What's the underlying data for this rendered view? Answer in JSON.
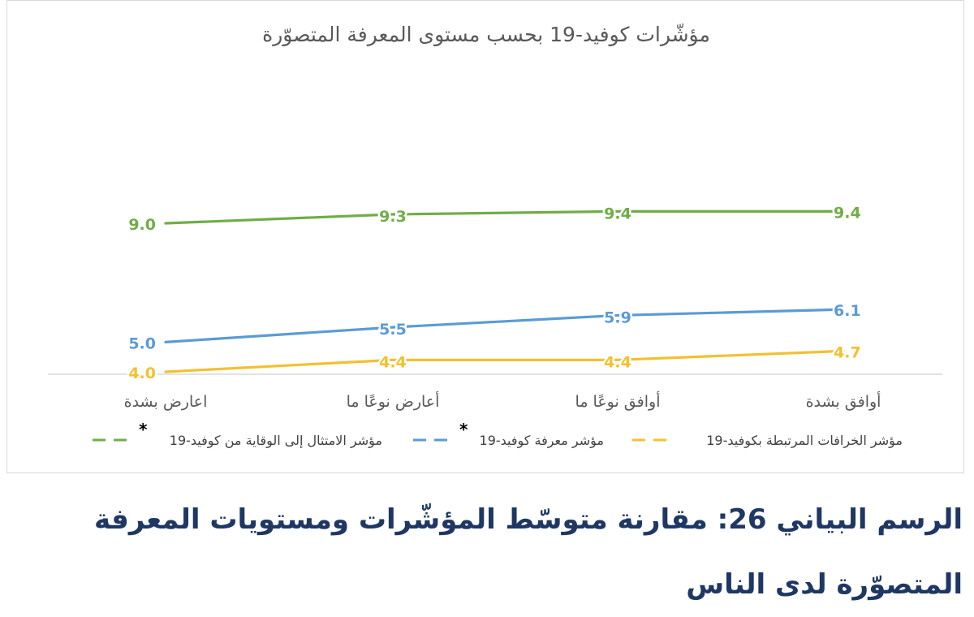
{
  "chart_data": {
    "type": "line",
    "title": "مؤشّرات كوفيد-19 بحسب مستوى المعرفة المتصوّرة",
    "categories": [
      "اعارض بشدة",
      "أعارض نوعًا ما",
      "أوافق نوعًا ما",
      "أوافق بشدة"
    ],
    "ylim": [
      4.0,
      9.6
    ],
    "grid": false,
    "legend_position": "bottom",
    "series": [
      {
        "name": "مؤشر الامتثال إلى الوقاية من كوفيد-19",
        "marker": "*",
        "color": "#70ad47",
        "dashed_legend": true,
        "values": [
          9.0,
          9.3,
          9.4,
          9.4
        ],
        "labels": [
          "9.0",
          "9.3",
          "9.4",
          "9.4"
        ]
      },
      {
        "name": "مؤشر معرفة كوفيد-19",
        "marker": "*",
        "color": "#5b9bd5",
        "dashed_legend": true,
        "values": [
          5.0,
          5.5,
          5.9,
          6.1
        ],
        "labels": [
          "5.0",
          "5.5",
          "5.9",
          "6.1"
        ]
      },
      {
        "name": "مؤشر الخرافات المرتبطة بكوفيد-19",
        "marker": "",
        "color": "#f4c030",
        "dashed_legend": true,
        "values": [
          4.0,
          4.4,
          4.4,
          4.7
        ],
        "labels": [
          "4.0",
          "4.4",
          "4.4",
          "4.7"
        ]
      }
    ]
  },
  "caption": "الرسم البياني 26: مقارنة متوسّط المؤشّرات ومستويات المعرفة المتصوّرة لدى الناس"
}
